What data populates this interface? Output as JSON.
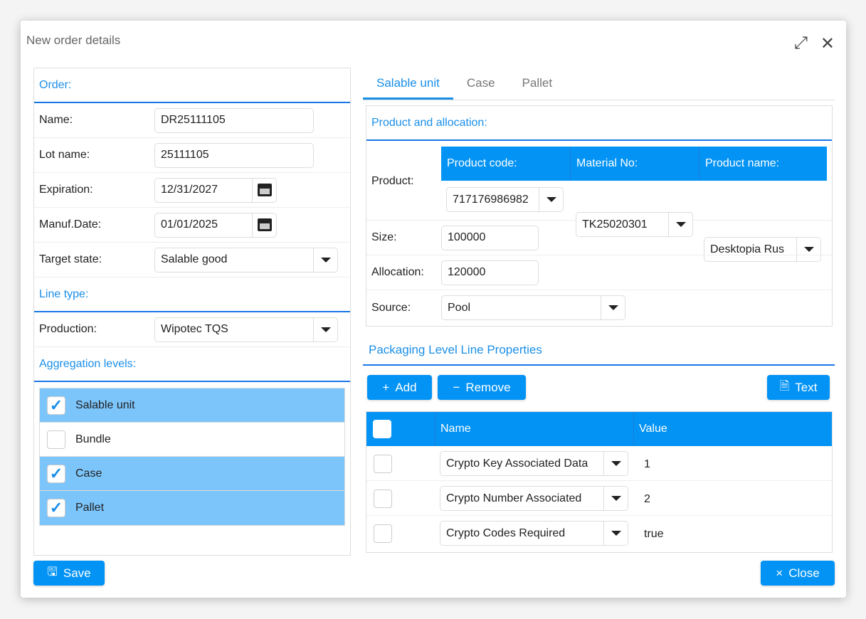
{
  "dialog": {
    "title": "New order details",
    "icons": [
      "expand-icon",
      "close-icon"
    ]
  },
  "order": {
    "section": "Order:",
    "name_label": "Name:",
    "name": "DR25111105",
    "lot_label": "Lot name:",
    "lot": "25111105",
    "exp_label": "Expiration:",
    "exp": "12/31/2027",
    "manuf_label": "Manuf.Date:",
    "manuf": "01/01/2025",
    "target_label": "Target state:",
    "target": "Salable good"
  },
  "line": {
    "section": "Line type:",
    "production_label": "Production:",
    "production": "Wipotec TQS"
  },
  "aggregation": {
    "section": "Aggregation levels:",
    "items": [
      {
        "label": "Salable unit",
        "checked": true
      },
      {
        "label": "Bundle",
        "checked": false
      },
      {
        "label": "Case",
        "checked": true
      },
      {
        "label": "Pallet",
        "checked": true
      }
    ]
  },
  "tabs": [
    {
      "label": "Salable unit",
      "active": true
    },
    {
      "label": "Case"
    },
    {
      "label": "Pallet"
    }
  ],
  "product": {
    "section": "Product and allocation:",
    "product_label": "Product:",
    "headers": [
      "Product code:",
      "Material No:",
      "Product name:"
    ],
    "values": [
      "717176986982",
      "TK25020301",
      "Desktopia Rus"
    ],
    "size_label": "Size:",
    "size": "100000",
    "alloc_label": "Allocation:",
    "alloc": "120000",
    "source_label": "Source:",
    "source": "Pool"
  },
  "packaging": {
    "section": "Packaging Level Line Properties",
    "add": "Add",
    "remove": "Remove",
    "text": "Text",
    "headers": [
      "Name",
      "Value"
    ],
    "rows": [
      {
        "name": "Crypto Key Associated Data",
        "value": "1"
      },
      {
        "name": "Crypto Number Associated",
        "value": "2"
      },
      {
        "name": "Crypto Codes Required",
        "value": "true"
      }
    ]
  },
  "footer": {
    "save": "Save",
    "close": "Close"
  },
  "colors": {
    "accent": "#0293f5",
    "selected": "#7cc5fb"
  }
}
